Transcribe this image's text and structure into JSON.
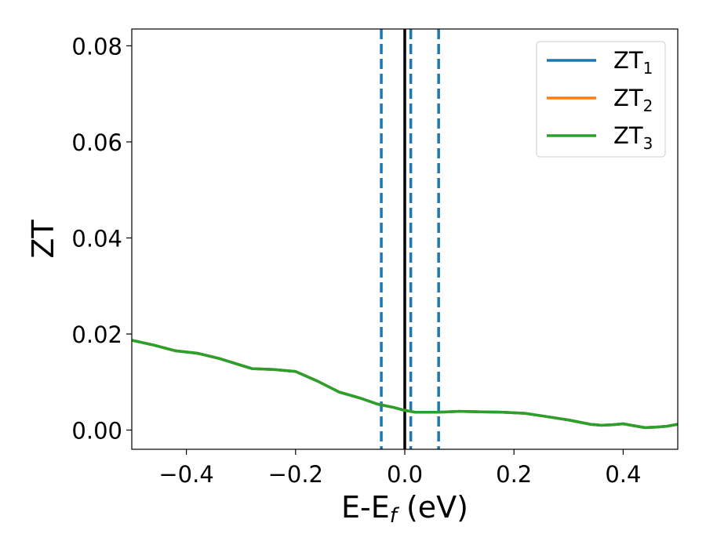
{
  "chart_data": {
    "type": "line",
    "xlabel_main": "E-E",
    "xlabel_sub": "f",
    "xlabel_unit": " (eV)",
    "ylabel": "ZT",
    "xlim": [
      -0.5,
      0.5
    ],
    "ylim": [
      -0.004,
      0.0835
    ],
    "x_ticks": [
      -0.4,
      -0.2,
      0.0,
      0.2,
      0.4
    ],
    "x_tick_labels": [
      "−0.4",
      "−0.2",
      "0.0",
      "0.2",
      "0.4"
    ],
    "y_ticks": [
      0.0,
      0.02,
      0.04,
      0.06,
      0.08
    ],
    "y_tick_labels": [
      "0.00",
      "0.02",
      "0.04",
      "0.06",
      "0.08"
    ],
    "grid": false,
    "legend_position": "top-right",
    "vertical_lines": [
      {
        "x": 0.0,
        "style": "solid",
        "color": "#000000"
      },
      {
        "x": -0.043,
        "style": "dashed",
        "color": "#1f77b4"
      },
      {
        "x": 0.011,
        "style": "dashed",
        "color": "#1f77b4"
      },
      {
        "x": 0.062,
        "style": "dashed",
        "color": "#1f77b4"
      }
    ],
    "series": [
      {
        "base": "ZT",
        "sub": "1",
        "color": "#1f77b4",
        "x": [
          -0.5,
          -0.46,
          -0.42,
          -0.38,
          -0.34,
          -0.3,
          -0.28,
          -0.24,
          -0.2,
          -0.16,
          -0.12,
          -0.08,
          -0.05,
          -0.02,
          0.0,
          0.02,
          0.06,
          0.1,
          0.14,
          0.18,
          0.22,
          0.26,
          0.3,
          0.34,
          0.36,
          0.38,
          0.4,
          0.42,
          0.44,
          0.46,
          0.48,
          0.5
        ],
        "y": [
          0.0187,
          0.0177,
          0.0165,
          0.016,
          0.0149,
          0.0135,
          0.0128,
          0.0126,
          0.0122,
          0.0102,
          0.0079,
          0.0066,
          0.0054,
          0.0047,
          0.0041,
          0.0037,
          0.0037,
          0.0039,
          0.0038,
          0.0037,
          0.0035,
          0.0028,
          0.0021,
          0.0012,
          0.001,
          0.0011,
          0.0013,
          0.0009,
          0.0005,
          0.0006,
          0.0008,
          0.0012
        ]
      },
      {
        "base": "ZT",
        "sub": "2",
        "color": "#ff7f0e",
        "x": [
          -0.5,
          -0.46,
          -0.42,
          -0.38,
          -0.34,
          -0.3,
          -0.28,
          -0.24,
          -0.2,
          -0.16,
          -0.12,
          -0.08,
          -0.05,
          -0.02,
          0.0,
          0.02,
          0.06,
          0.1,
          0.14,
          0.18,
          0.22,
          0.26,
          0.3,
          0.34,
          0.36,
          0.38,
          0.4,
          0.42,
          0.44,
          0.46,
          0.48,
          0.5
        ],
        "y": [
          0.0187,
          0.0177,
          0.0165,
          0.016,
          0.0149,
          0.0135,
          0.0128,
          0.0126,
          0.0122,
          0.0102,
          0.0079,
          0.0066,
          0.0054,
          0.0047,
          0.0041,
          0.0037,
          0.0037,
          0.0039,
          0.0038,
          0.0037,
          0.0035,
          0.0028,
          0.0021,
          0.0012,
          0.001,
          0.0011,
          0.0013,
          0.0009,
          0.0005,
          0.0006,
          0.0008,
          0.0012
        ]
      },
      {
        "base": "ZT",
        "sub": "3",
        "color": "#2ca02c",
        "x": [
          -0.5,
          -0.46,
          -0.42,
          -0.38,
          -0.34,
          -0.3,
          -0.28,
          -0.24,
          -0.2,
          -0.16,
          -0.12,
          -0.08,
          -0.05,
          -0.02,
          0.0,
          0.02,
          0.06,
          0.1,
          0.14,
          0.18,
          0.22,
          0.26,
          0.3,
          0.34,
          0.36,
          0.38,
          0.4,
          0.42,
          0.44,
          0.46,
          0.48,
          0.5
        ],
        "y": [
          0.0187,
          0.0177,
          0.0165,
          0.016,
          0.0149,
          0.0135,
          0.0128,
          0.0126,
          0.0122,
          0.0102,
          0.0079,
          0.0066,
          0.0054,
          0.0047,
          0.0041,
          0.0037,
          0.0037,
          0.0039,
          0.0038,
          0.0037,
          0.0035,
          0.0028,
          0.0021,
          0.0012,
          0.001,
          0.0011,
          0.0013,
          0.0009,
          0.0005,
          0.0006,
          0.0008,
          0.0012
        ]
      }
    ]
  }
}
